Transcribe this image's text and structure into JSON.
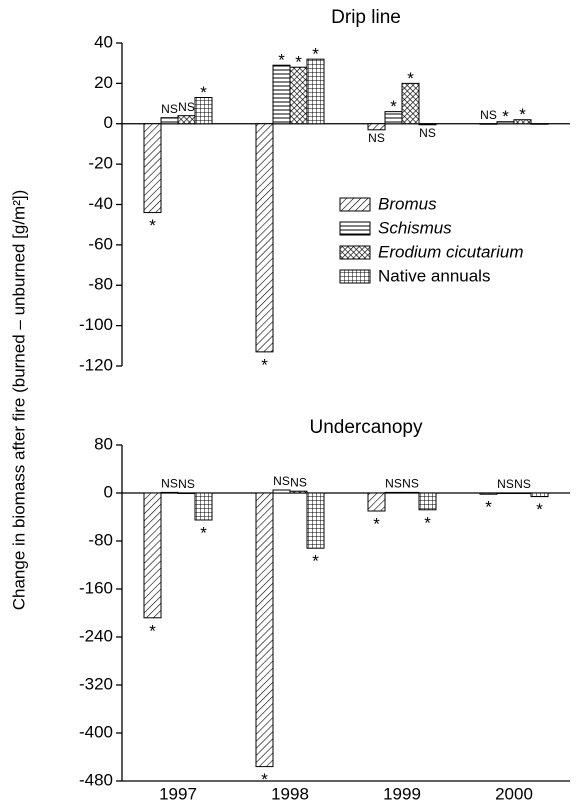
{
  "ylabel": "Change in biomass after fire (burned – unburned [g/m²])",
  "chart_data": [
    {
      "type": "bar",
      "title": "Drip line",
      "ylim": [
        -120,
        40
      ],
      "yticks": [
        40,
        20,
        0,
        -20,
        -40,
        -60,
        -80,
        -100,
        -120
      ],
      "legend": "right",
      "series": [
        {
          "name": "Bromus",
          "font_style": "italic",
          "pattern": "diagonal",
          "color": "#000000",
          "values": [
            -44,
            -113,
            -3,
            0
          ],
          "sig_labels": [
            "*",
            "*",
            "NS",
            "NS"
          ]
        },
        {
          "name": "Schismus",
          "font_style": "italic",
          "pattern": "horizontal",
          "color": "#000000",
          "values": [
            3,
            29,
            6,
            1
          ],
          "sig_labels": [
            "NS",
            "*",
            "*",
            "*"
          ]
        },
        {
          "name": "Erodium cicutarium",
          "font_style": "italic",
          "pattern": "crosshatch",
          "color": "#000000",
          "values": [
            4,
            28,
            20,
            2
          ],
          "sig_labels": [
            "NS",
            "*",
            "*",
            "*"
          ]
        },
        {
          "name": "Native annuals",
          "font_style": "normal",
          "pattern": "grid",
          "color": "#000000",
          "values": [
            13,
            32,
            -0.5,
            0
          ],
          "sig_labels": [
            "*",
            "*",
            "NS",
            null
          ]
        }
      ]
    },
    {
      "type": "bar",
      "title": "Undercanopy",
      "categories": [
        "1997",
        "1998",
        "1999",
        "2000"
      ],
      "ylim": [
        -480,
        80
      ],
      "yticks": [
        80,
        0,
        -80,
        -160,
        -240,
        -320,
        -400,
        -480
      ],
      "series": [
        {
          "name": "Bromus",
          "pattern": "diagonal",
          "color": "#000000",
          "values": [
            -208,
            -456,
            -30,
            -2
          ],
          "sig_labels": [
            "*",
            "*",
            "*",
            "*"
          ]
        },
        {
          "name": "Schismus",
          "pattern": "horizontal",
          "color": "#000000",
          "values": [
            1,
            5,
            1,
            0
          ],
          "sig_labels": [
            "NS",
            "NS",
            "NS",
            "NS"
          ]
        },
        {
          "name": "Erodium cicutarium",
          "pattern": "crosshatch",
          "color": "#000000",
          "values": [
            0,
            3,
            1,
            0
          ],
          "sig_labels": [
            "NS",
            "NS",
            "NS",
            "NS"
          ]
        },
        {
          "name": "Native annuals",
          "pattern": "grid",
          "color": "#000000",
          "values": [
            -45,
            -92,
            -28,
            -6
          ],
          "sig_labels": [
            "*",
            "*",
            "*",
            "*"
          ]
        }
      ]
    }
  ]
}
